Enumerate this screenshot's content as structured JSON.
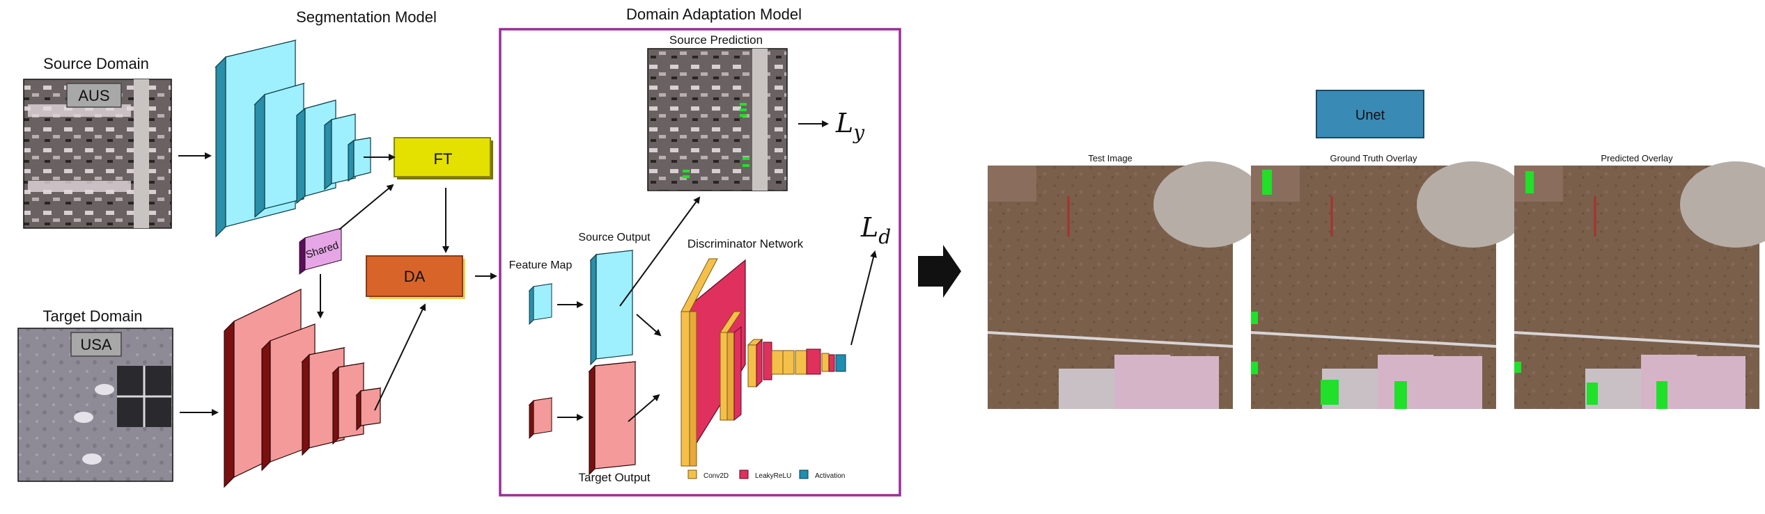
{
  "titles": {
    "segmentation_model": "Segmentation Model",
    "domain_adaptation_model": "Domain Adaptation Model"
  },
  "source": {
    "label": "Source Domain",
    "tag": "AUS"
  },
  "target": {
    "label": "Target Domain",
    "tag": "USA"
  },
  "blocks": {
    "ft": "FT",
    "da": "DA",
    "shared": "Shared"
  },
  "da_panel": {
    "source_prediction": "Source Prediction",
    "loss_y": "L",
    "loss_y_sub": "y",
    "loss_d": "L",
    "loss_d_sub": "d",
    "feature_map": "Feature Map",
    "source_output": "Source Output",
    "target_output": "Target Output",
    "discriminator": "Discriminator Network",
    "legend": [
      "Conv2D",
      "LeakyReLU",
      "Activation"
    ]
  },
  "results": {
    "model_box": "Unet",
    "panels": [
      "Test Image",
      "Ground Truth Overlay",
      "Predicted Overlay"
    ]
  },
  "colors": {
    "enc_cyan_front": "#9ef0ff",
    "enc_cyan_side": "#2a8fa8",
    "dec_red_front": "#f49a9a",
    "dec_red_side": "#7a1010",
    "ft_fill": "#e4e000",
    "da_fill": "#d9642a",
    "shared_fill": "#8b2a8a",
    "frame_purple": "#9b2d9b",
    "disc_yellow": "#f5c04a",
    "disc_pink": "#e0305e",
    "disc_teal": "#1e8fb0",
    "unet_fill": "#3a8ab6",
    "overlay_green": "#20e02a"
  }
}
